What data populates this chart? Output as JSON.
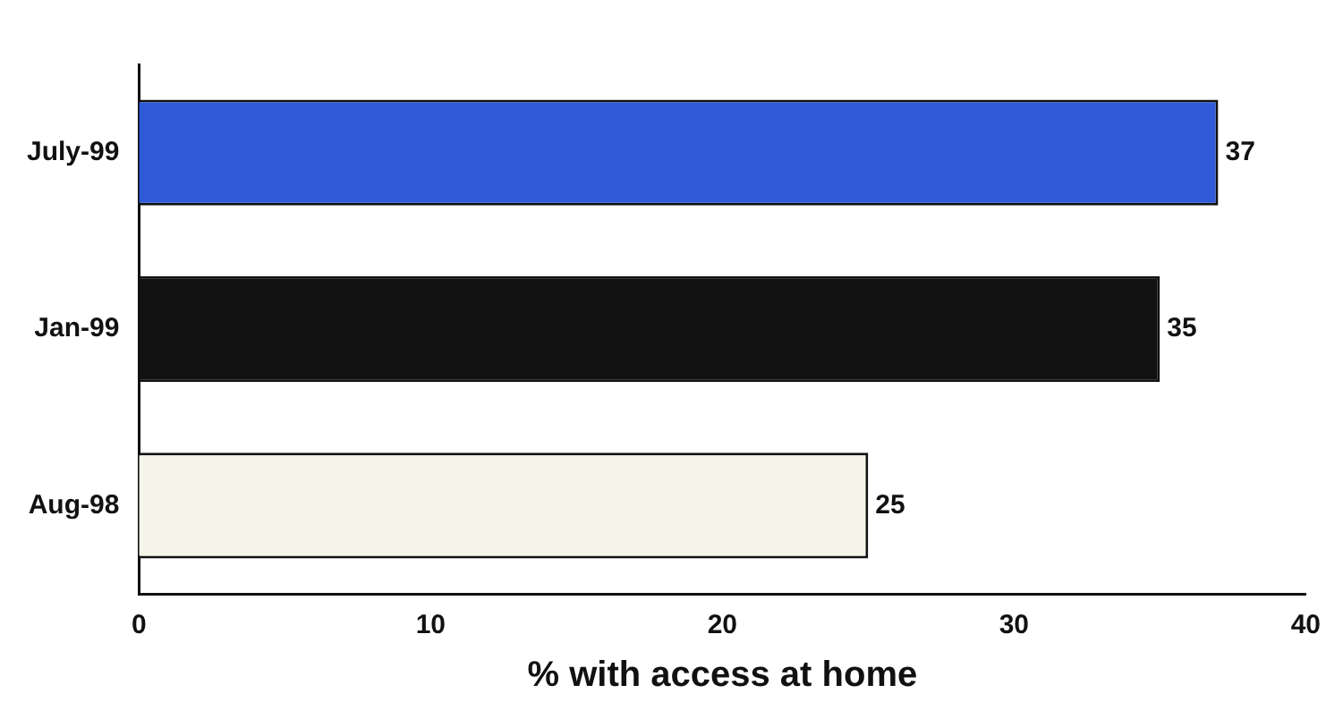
{
  "chart_data": {
    "type": "bar",
    "orientation": "horizontal",
    "xlabel": "% with access at home",
    "categories": [
      "July-99",
      "Jan-99",
      "Aug-98"
    ],
    "values": [
      37,
      35,
      25
    ],
    "colors": [
      "#2f5bd8",
      "#111111",
      "#f4f4e8"
    ],
    "xlim": [
      0,
      40
    ],
    "xticks": [
      0,
      10,
      20,
      30,
      40
    ],
    "data_labels": true,
    "grid": false,
    "legend": false
  }
}
